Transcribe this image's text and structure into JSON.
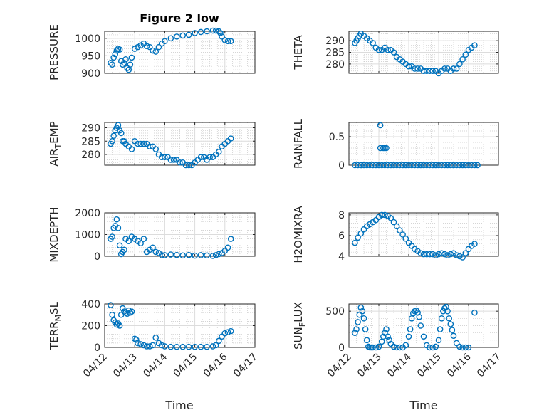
{
  "figure": {
    "title": "Figure 2 low",
    "x_axis_label": "Time",
    "x_tick_labels": [
      "04/12",
      "04/13",
      "04/14",
      "04/15",
      "04/16",
      "04/17"
    ]
  },
  "chart_data": [
    {
      "type": "scatter",
      "ylabel": "PRESSURE",
      "title": "Figure 2 low",
      "xlim": [
        0,
        5
      ],
      "ylim": [
        900,
        1020
      ],
      "yticks": [
        900,
        950,
        1000
      ],
      "grid": true,
      "x": [
        0.2,
        0.25,
        0.3,
        0.35,
        0.4,
        0.45,
        0.5,
        0.55,
        0.6,
        0.65,
        0.7,
        0.75,
        0.8,
        0.85,
        0.9,
        1.0,
        1.1,
        1.2,
        1.3,
        1.4,
        1.5,
        1.6,
        1.7,
        1.8,
        1.9,
        2.0,
        2.2,
        2.4,
        2.6,
        2.8,
        3.0,
        3.2,
        3.4,
        3.6,
        3.7,
        3.8,
        3.85,
        3.9,
        4.0,
        4.1,
        4.2
      ],
      "y": [
        930,
        925,
        945,
        955,
        965,
        970,
        968,
        935,
        925,
        930,
        940,
        915,
        910,
        925,
        945,
        970,
        975,
        980,
        985,
        978,
        975,
        965,
        962,
        975,
        985,
        992,
        1000,
        1005,
        1008,
        1010,
        1015,
        1018,
        1020,
        1022,
        1022,
        1020,
        1015,
        1005,
        995,
        992,
        992
      ]
    },
    {
      "type": "scatter",
      "ylabel": "THETA",
      "xlim": [
        0,
        5
      ],
      "ylim": [
        276,
        294
      ],
      "yticks": [
        280,
        285,
        290
      ],
      "grid": true,
      "x": [
        0.2,
        0.25,
        0.3,
        0.35,
        0.4,
        0.5,
        0.6,
        0.7,
        0.8,
        0.9,
        1.0,
        1.1,
        1.2,
        1.3,
        1.4,
        1.5,
        1.6,
        1.7,
        1.8,
        1.9,
        2.0,
        2.1,
        2.2,
        2.3,
        2.4,
        2.5,
        2.6,
        2.7,
        2.8,
        2.9,
        3.0,
        3.1,
        3.2,
        3.3,
        3.4,
        3.5,
        3.6,
        3.7,
        3.8,
        3.9,
        4.0,
        4.1,
        4.2
      ],
      "y": [
        289,
        290,
        291,
        292,
        293,
        292,
        291,
        290,
        289,
        287,
        286,
        286,
        287,
        286,
        286,
        285,
        283,
        282,
        281,
        280,
        279,
        279,
        278,
        278,
        278,
        277,
        277,
        277,
        277,
        277,
        276,
        277,
        278,
        278,
        277,
        278,
        278,
        280,
        282,
        284,
        286,
        287,
        288
      ]
    },
    {
      "type": "scatter",
      "ylabel": "AIR_TEMP",
      "xlim": [
        0,
        5
      ],
      "ylim": [
        276,
        292
      ],
      "yticks": [
        280,
        285,
        290
      ],
      "grid": true,
      "x": [
        0.2,
        0.25,
        0.3,
        0.35,
        0.4,
        0.45,
        0.5,
        0.55,
        0.6,
        0.65,
        0.7,
        0.8,
        0.9,
        1.0,
        1.1,
        1.2,
        1.3,
        1.4,
        1.5,
        1.6,
        1.7,
        1.8,
        1.9,
        2.0,
        2.1,
        2.2,
        2.3,
        2.4,
        2.5,
        2.6,
        2.7,
        2.8,
        2.9,
        3.0,
        3.1,
        3.2,
        3.3,
        3.4,
        3.5,
        3.6,
        3.7,
        3.8,
        3.9,
        4.0,
        4.1,
        4.2
      ],
      "y": [
        284,
        285,
        287,
        289,
        290,
        291,
        289,
        288,
        285,
        285,
        284,
        283,
        282,
        285,
        284,
        284,
        284,
        284,
        283,
        283,
        282,
        280,
        279,
        279,
        279,
        278,
        278,
        278,
        277,
        277,
        276,
        276,
        276,
        277,
        278,
        279,
        279,
        278,
        279,
        279,
        280,
        281,
        283,
        284,
        285,
        286
      ]
    },
    {
      "type": "scatter",
      "ylabel": "RAINFALL",
      "xlim": [
        0,
        5
      ],
      "ylim": [
        0,
        0.75
      ],
      "yticks": [
        0,
        0.5
      ],
      "ytick_labels": [
        "0",
        "0.5"
      ],
      "grid": true,
      "x": [
        0.2,
        0.3,
        0.4,
        0.5,
        0.6,
        0.7,
        0.8,
        0.9,
        1.0,
        1.1,
        1.2,
        1.3,
        1.4,
        1.5,
        1.6,
        1.7,
        1.8,
        1.9,
        2.0,
        2.1,
        2.2,
        2.3,
        2.4,
        2.5,
        2.6,
        2.7,
        2.8,
        2.9,
        3.0,
        3.1,
        3.2,
        3.3,
        3.4,
        3.5,
        3.6,
        3.7,
        3.8,
        3.9,
        4.0,
        4.1,
        4.2,
        4.3,
        1.05,
        1.05,
        1.15,
        1.2,
        1.25
      ],
      "y": [
        0,
        0,
        0,
        0,
        0,
        0,
        0,
        0,
        0,
        0,
        0,
        0,
        0,
        0,
        0,
        0,
        0,
        0,
        0,
        0,
        0,
        0,
        0,
        0,
        0,
        0,
        0,
        0,
        0,
        0,
        0,
        0,
        0,
        0,
        0,
        0,
        0,
        0,
        0,
        0,
        0,
        0,
        0.7,
        0.3,
        0.3,
        0.3,
        0.3
      ]
    },
    {
      "type": "scatter",
      "ylabel": "MIXDEPTH",
      "xlim": [
        0,
        5
      ],
      "ylim": [
        0,
        2000
      ],
      "yticks": [
        0,
        1000,
        2000
      ],
      "grid": true,
      "x": [
        0.2,
        0.25,
        0.3,
        0.35,
        0.4,
        0.45,
        0.5,
        0.55,
        0.6,
        0.65,
        0.7,
        0.8,
        0.9,
        1.0,
        1.1,
        1.2,
        1.3,
        1.4,
        1.5,
        1.6,
        1.7,
        1.8,
        1.9,
        2.0,
        2.2,
        2.4,
        2.6,
        2.8,
        3.0,
        3.2,
        3.4,
        3.6,
        3.7,
        3.8,
        3.9,
        4.0,
        4.1,
        4.2
      ],
      "y": [
        800,
        900,
        1300,
        1400,
        1700,
        1300,
        500,
        100,
        200,
        300,
        800,
        700,
        900,
        800,
        700,
        600,
        800,
        200,
        300,
        400,
        200,
        150,
        50,
        50,
        80,
        60,
        40,
        60,
        30,
        50,
        40,
        20,
        50,
        100,
        150,
        250,
        400,
        800
      ]
    },
    {
      "type": "scatter",
      "ylabel": "H2OMIXRA",
      "xlim": [
        0,
        5
      ],
      "ylim": [
        4,
        8.2
      ],
      "yticks": [
        4,
        6,
        8
      ],
      "grid": true,
      "x": [
        0.2,
        0.3,
        0.4,
        0.5,
        0.6,
        0.7,
        0.8,
        0.9,
        1.0,
        1.1,
        1.2,
        1.3,
        1.4,
        1.5,
        1.6,
        1.7,
        1.8,
        1.9,
        2.0,
        2.1,
        2.2,
        2.3,
        2.4,
        2.5,
        2.6,
        2.7,
        2.8,
        2.9,
        3.0,
        3.1,
        3.2,
        3.3,
        3.4,
        3.5,
        3.6,
        3.7,
        3.8,
        3.9,
        4.0,
        4.1,
        4.2
      ],
      "y": [
        5.3,
        5.8,
        6.2,
        6.6,
        6.9,
        7.1,
        7.3,
        7.5,
        7.8,
        8.0,
        8.0,
        7.9,
        7.7,
        7.3,
        6.9,
        6.5,
        6.1,
        5.7,
        5.3,
        5.0,
        4.7,
        4.5,
        4.3,
        4.2,
        4.2,
        4.2,
        4.2,
        4.1,
        4.2,
        4.3,
        4.2,
        4.1,
        4.2,
        4.3,
        4.1,
        4.0,
        3.9,
        4.3,
        4.7,
        5.0,
        5.2
      ]
    },
    {
      "type": "scatter",
      "ylabel": "TERR_MSL",
      "xlim": [
        0,
        5
      ],
      "ylim": [
        0,
        400
      ],
      "yticks": [
        0,
        200,
        400
      ],
      "grid": true,
      "x": [
        0.2,
        0.25,
        0.3,
        0.35,
        0.4,
        0.45,
        0.5,
        0.55,
        0.6,
        0.65,
        0.7,
        0.75,
        0.8,
        0.85,
        0.9,
        1.0,
        1.05,
        1.1,
        1.2,
        1.3,
        1.4,
        1.5,
        1.6,
        1.7,
        1.8,
        1.9,
        2.0,
        2.2,
        2.4,
        2.6,
        2.8,
        3.0,
        3.2,
        3.4,
        3.6,
        3.7,
        3.8,
        3.9,
        4.0,
        4.1,
        4.2
      ],
      "y": [
        390,
        300,
        250,
        230,
        210,
        220,
        200,
        300,
        360,
        330,
        320,
        310,
        340,
        320,
        330,
        80,
        70,
        40,
        30,
        20,
        10,
        10,
        20,
        90,
        40,
        20,
        10,
        5,
        5,
        5,
        5,
        5,
        5,
        5,
        10,
        20,
        60,
        100,
        130,
        140,
        150
      ]
    },
    {
      "type": "scatter",
      "ylabel": "SUN_FLUX",
      "xlim": [
        0,
        5
      ],
      "ylim": [
        0,
        600
      ],
      "yticks": [
        0,
        500
      ],
      "grid": true,
      "x": [
        0.2,
        0.25,
        0.3,
        0.35,
        0.4,
        0.45,
        0.5,
        0.55,
        0.6,
        0.65,
        0.7,
        0.75,
        0.8,
        0.9,
        1.0,
        1.1,
        1.15,
        1.2,
        1.25,
        1.3,
        1.35,
        1.4,
        1.5,
        1.6,
        1.7,
        1.8,
        1.9,
        2.0,
        2.05,
        2.1,
        2.15,
        2.2,
        2.25,
        2.3,
        2.35,
        2.4,
        2.5,
        2.6,
        2.7,
        2.8,
        2.9,
        3.0,
        3.05,
        3.1,
        3.15,
        3.2,
        3.25,
        3.3,
        3.35,
        3.4,
        3.45,
        3.5,
        3.6,
        3.7,
        3.8,
        3.9,
        4.0,
        4.2
      ],
      "y": [
        200,
        250,
        350,
        450,
        550,
        500,
        400,
        250,
        100,
        10,
        0,
        0,
        0,
        0,
        10,
        80,
        150,
        200,
        250,
        150,
        100,
        50,
        10,
        0,
        0,
        0,
        30,
        150,
        250,
        400,
        470,
        500,
        510,
        480,
        420,
        300,
        150,
        30,
        0,
        0,
        10,
        100,
        250,
        400,
        500,
        540,
        560,
        500,
        400,
        320,
        240,
        160,
        60,
        10,
        0,
        0,
        0,
        480
      ]
    }
  ]
}
